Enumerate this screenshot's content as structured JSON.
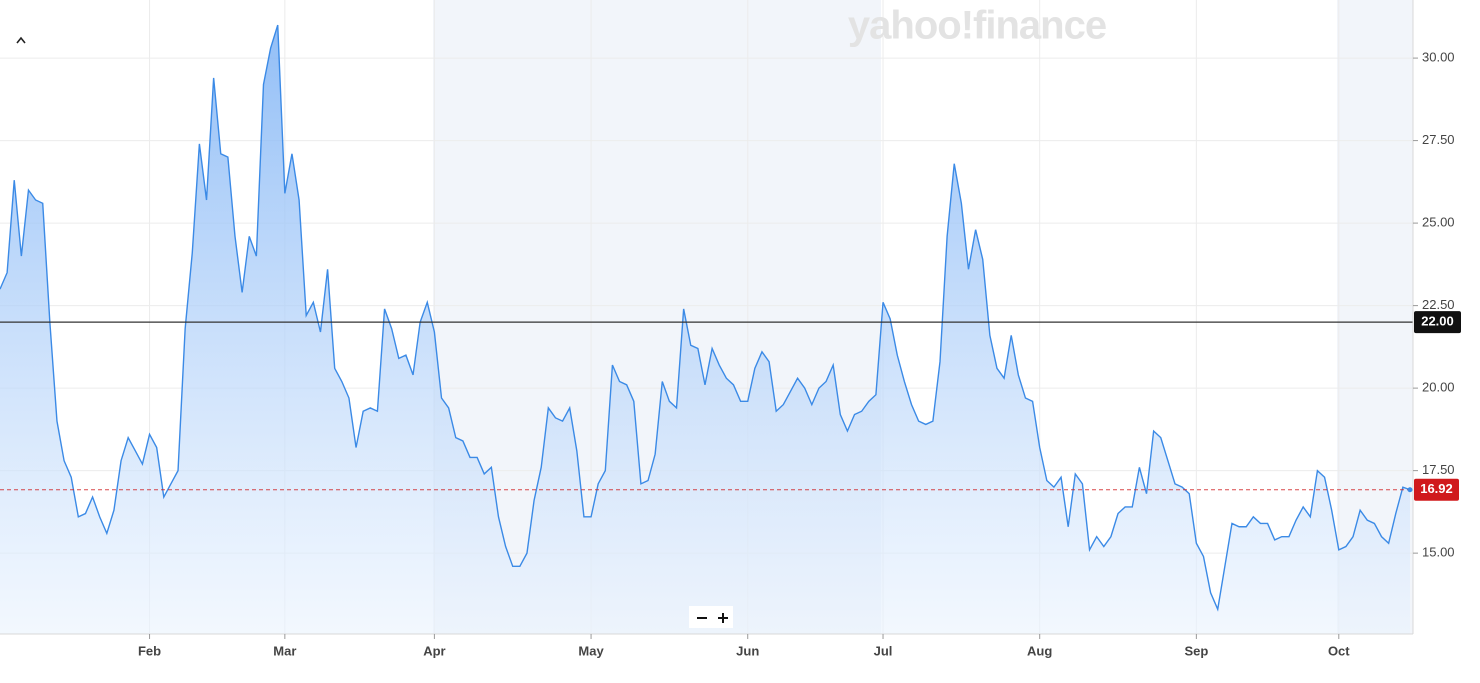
{
  "chart_data": {
    "type": "area",
    "watermark": "yahoo!finance",
    "categories": [
      null,
      null,
      null,
      null,
      null,
      null,
      null,
      null,
      null,
      null,
      null,
      null,
      null,
      null,
      null,
      null,
      null,
      null,
      null,
      null,
      null,
      "Feb",
      null,
      null,
      null,
      null,
      null,
      null,
      null,
      null,
      null,
      null,
      null,
      null,
      null,
      null,
      null,
      null,
      null,
      null,
      "Mar",
      null,
      null,
      null,
      null,
      null,
      null,
      null,
      null,
      null,
      null,
      null,
      null,
      null,
      null,
      null,
      null,
      null,
      null,
      null,
      null,
      "Apr",
      null,
      null,
      null,
      null,
      null,
      null,
      null,
      null,
      null,
      null,
      null,
      null,
      null,
      null,
      null,
      null,
      null,
      null,
      null,
      null,
      null,
      "May",
      null,
      null,
      null,
      null,
      null,
      null,
      null,
      null,
      null,
      null,
      null,
      null,
      null,
      null,
      null,
      null,
      null,
      null,
      null,
      null,
      null,
      "Jun",
      null,
      null,
      null,
      null,
      null,
      null,
      null,
      null,
      null,
      null,
      null,
      null,
      null,
      null,
      null,
      null,
      null,
      null,
      "Jul",
      null,
      null,
      null,
      null,
      null,
      null,
      null,
      null,
      null,
      null,
      null,
      null,
      null,
      null,
      null,
      null,
      null,
      null,
      null,
      null,
      null,
      "Aug",
      null,
      null,
      null,
      null,
      null,
      null,
      null,
      null,
      null,
      null,
      null,
      null,
      null,
      null,
      null,
      null,
      null,
      null,
      null,
      null,
      null,
      "Sep",
      null,
      null,
      null,
      null,
      null,
      null,
      null,
      null,
      null,
      null,
      null,
      null,
      null,
      null,
      null,
      null,
      null,
      null,
      null,
      "Oct",
      null,
      null,
      null,
      null,
      null,
      null,
      null,
      null,
      null,
      null
    ],
    "values": [
      23.0,
      23.5,
      26.3,
      24.0,
      26.0,
      25.7,
      25.6,
      22.0,
      19.0,
      17.8,
      17.3,
      16.1,
      16.2,
      16.7,
      16.1,
      15.6,
      16.3,
      17.8,
      18.5,
      18.1,
      17.7,
      18.6,
      18.2,
      16.7,
      17.1,
      17.5,
      21.8,
      24.1,
      27.4,
      25.7,
      29.4,
      27.1,
      27.0,
      24.6,
      22.9,
      24.6,
      24.0,
      29.2,
      30.3,
      31.0,
      25.9,
      27.1,
      25.7,
      22.2,
      22.6,
      21.7,
      23.6,
      20.6,
      20.2,
      19.7,
      18.2,
      19.3,
      19.4,
      19.3,
      22.4,
      21.8,
      20.9,
      21.0,
      20.4,
      22.0,
      22.6,
      21.7,
      19.7,
      19.4,
      18.5,
      18.4,
      17.9,
      17.9,
      17.4,
      17.6,
      16.1,
      15.2,
      14.6,
      14.6,
      15.0,
      16.6,
      17.6,
      19.4,
      19.1,
      19.0,
      19.4,
      18.1,
      16.1,
      16.1,
      17.1,
      17.5,
      20.7,
      20.2,
      20.1,
      19.6,
      17.1,
      17.2,
      18.0,
      20.2,
      19.6,
      19.4,
      22.4,
      21.3,
      21.2,
      20.1,
      21.2,
      20.7,
      20.3,
      20.1,
      19.6,
      19.6,
      20.6,
      21.1,
      20.8,
      19.3,
      19.5,
      19.9,
      20.3,
      20.0,
      19.5,
      20.0,
      20.2,
      20.7,
      19.2,
      18.7,
      19.2,
      19.3,
      19.6,
      19.8,
      22.6,
      22.1,
      21.0,
      20.2,
      19.5,
      19.0,
      18.9,
      19.0,
      20.8,
      24.6,
      26.8,
      25.6,
      23.6,
      24.8,
      23.9,
      21.6,
      20.6,
      20.3,
      21.6,
      20.4,
      19.7,
      19.6,
      18.2,
      17.2,
      17.0,
      17.3,
      15.8,
      17.4,
      17.1,
      15.1,
      15.5,
      15.2,
      15.5,
      16.2,
      16.4,
      16.4,
      17.6,
      16.8,
      18.7,
      18.5,
      17.8,
      17.1,
      17.0,
      16.8,
      15.3,
      14.9,
      13.8,
      13.3,
      14.6,
      15.9,
      15.8,
      15.8,
      16.1,
      15.9,
      15.9,
      15.4,
      15.5,
      15.5,
      16.0,
      16.4,
      16.1,
      17.5,
      17.3,
      16.3,
      15.1,
      15.2,
      15.5,
      16.3,
      16.0,
      15.9,
      15.5,
      15.3,
      16.2,
      17.0,
      16.92
    ],
    "color": "#3b8ae6",
    "ylim": [
      12.55,
      31.76
    ],
    "yticks": [
      {
        "value": 15,
        "label": "15.00"
      },
      {
        "value": 17.5,
        "label": "17.50"
      },
      {
        "value": 20,
        "label": "20.00"
      },
      {
        "value": 22.5,
        "label": "22.50"
      },
      {
        "value": 25,
        "label": "25.00"
      },
      {
        "value": 27.5,
        "label": "27.50"
      },
      {
        "value": 30,
        "label": "30.00"
      }
    ],
    "grid": true,
    "reference_line": {
      "value": 22,
      "label": "22.00",
      "color": "#333333"
    },
    "current_line": {
      "value": 16.92,
      "color": "#d0191c"
    }
  }
}
